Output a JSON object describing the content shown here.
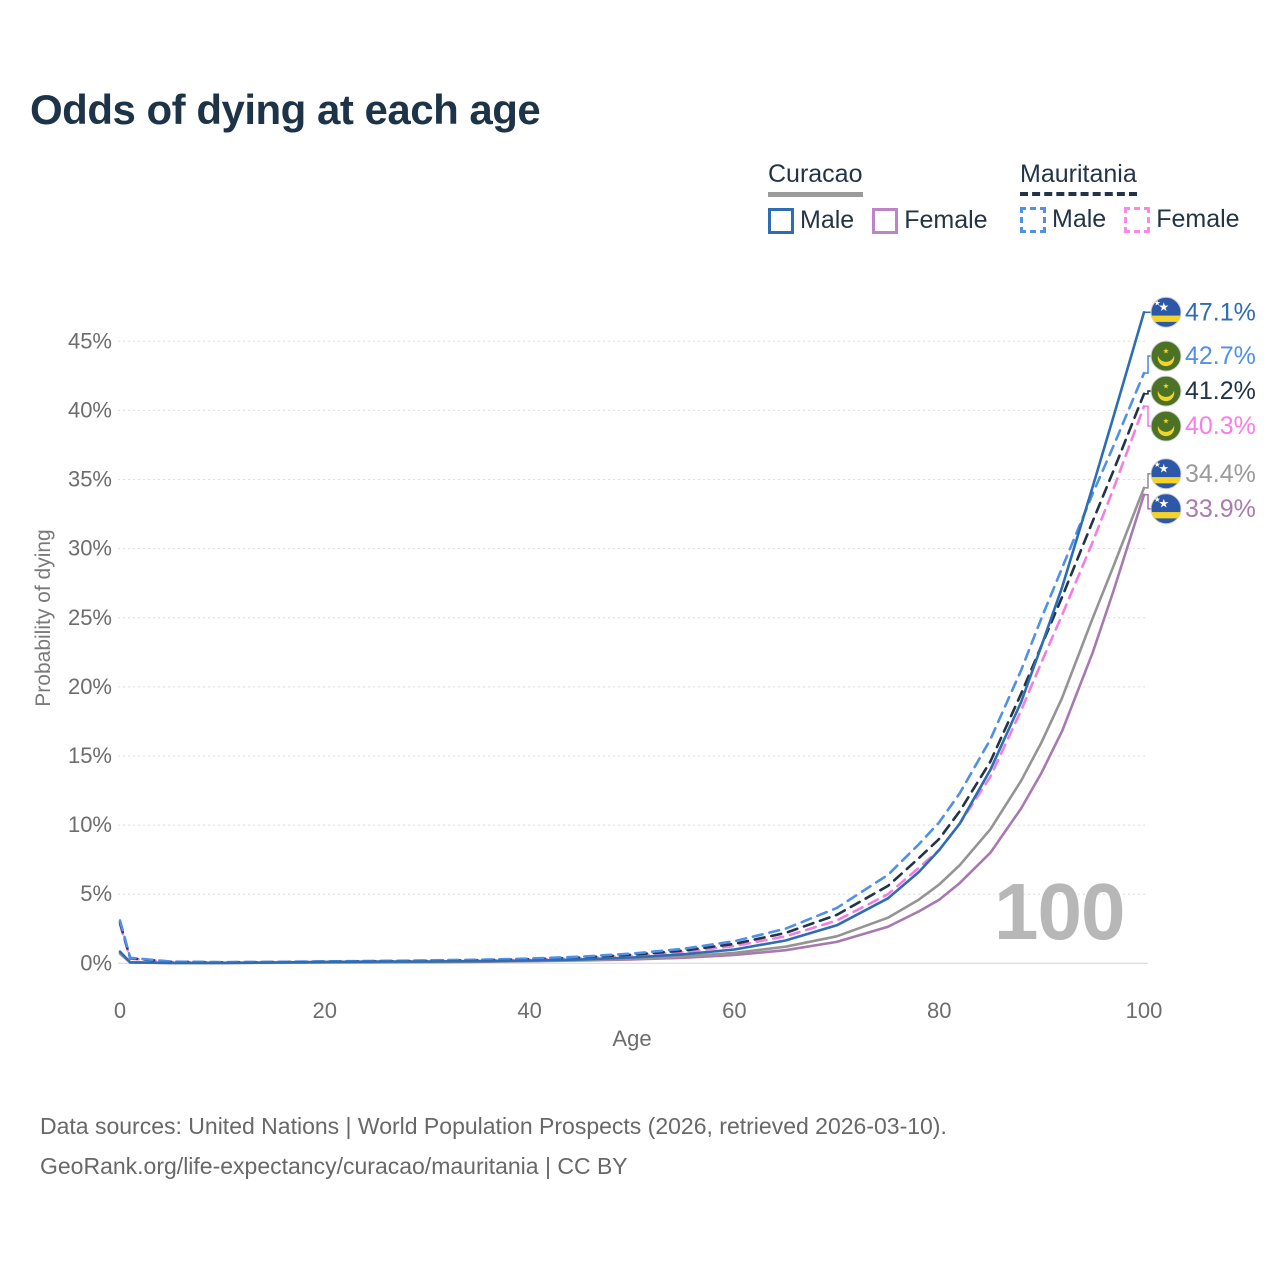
{
  "page": {
    "title": "Odds of dying at each age",
    "watermark_age": "100",
    "footer_line1": "Data sources: United Nations | World Population Prospects (2026, retrieved 2026-03-10).",
    "footer_line2": "GeoRank.org/life-expectancy/curacao/mauritania | CC BY"
  },
  "legend": {
    "groups": [
      {
        "id": "curacao",
        "label": "Curacao",
        "line_style": "solid",
        "line_color": "#9b9b9b",
        "items": [
          {
            "id": "male",
            "label": "Male",
            "color": "#2e6db4",
            "dashed": false
          },
          {
            "id": "female",
            "label": "Female",
            "color": "#bd84c6",
            "dashed": false
          }
        ]
      },
      {
        "id": "mauritania",
        "label": "Mauritania",
        "line_style": "dashed",
        "line_color": "#223448",
        "items": [
          {
            "id": "male",
            "label": "Male",
            "color": "#4f90e8",
            "dashed": true
          },
          {
            "id": "female",
            "label": "Female",
            "color": "#fb87e8",
            "dashed": true
          }
        ]
      }
    ]
  },
  "chart_data": {
    "type": "line",
    "title": "Odds of dying at each age",
    "xlabel": "Age",
    "ylabel": "Probability of dying",
    "xlim": [
      0,
      100
    ],
    "ylim": [
      0,
      47.5
    ],
    "x_ticks": [
      0,
      20,
      40,
      60,
      80,
      100
    ],
    "y_ticks": [
      0,
      5,
      10,
      15,
      20,
      25,
      30,
      35,
      40,
      45
    ],
    "y_tick_suffix": "%",
    "grid": true,
    "legend_position": "top-right",
    "hover_age": 100,
    "series": [
      {
        "id": "curacao-female",
        "name": "Curacao Female",
        "country": "Curacao",
        "sex": "Female",
        "color": "#a879b1",
        "label_color": "#a87cae",
        "dashed": false,
        "flag": "curacao",
        "end_label": "33.9%",
        "end_value": 33.9,
        "points": [
          [
            0,
            0.7
          ],
          [
            1,
            0.05
          ],
          [
            5,
            0.02
          ],
          [
            10,
            0.02
          ],
          [
            15,
            0.035
          ],
          [
            20,
            0.05
          ],
          [
            25,
            0.065
          ],
          [
            30,
            0.08
          ],
          [
            35,
            0.11
          ],
          [
            40,
            0.15
          ],
          [
            45,
            0.2
          ],
          [
            50,
            0.28
          ],
          [
            55,
            0.4
          ],
          [
            60,
            0.6
          ],
          [
            65,
            0.95
          ],
          [
            70,
            1.55
          ],
          [
            75,
            2.65
          ],
          [
            78,
            3.75
          ],
          [
            80,
            4.6
          ],
          [
            82,
            5.8
          ],
          [
            85,
            8.0
          ],
          [
            88,
            11.2
          ],
          [
            90,
            13.8
          ],
          [
            92,
            16.8
          ],
          [
            95,
            22.5
          ],
          [
            97,
            26.9
          ],
          [
            100,
            33.9
          ]
        ]
      },
      {
        "id": "curacao-both",
        "name": "Curacao Both sexes",
        "country": "Curacao",
        "sex": "Both",
        "color": "#949494",
        "label_color": "#9b9b9b",
        "dashed": false,
        "flag": "curacao",
        "end_label": "34.4%",
        "end_value": 34.4,
        "points": [
          [
            0,
            0.78
          ],
          [
            1,
            0.06
          ],
          [
            5,
            0.025
          ],
          [
            10,
            0.025
          ],
          [
            15,
            0.05
          ],
          [
            20,
            0.08
          ],
          [
            25,
            0.1
          ],
          [
            30,
            0.11
          ],
          [
            35,
            0.13
          ],
          [
            40,
            0.17
          ],
          [
            45,
            0.23
          ],
          [
            50,
            0.34
          ],
          [
            55,
            0.5
          ],
          [
            60,
            0.75
          ],
          [
            65,
            1.2
          ],
          [
            70,
            1.95
          ],
          [
            75,
            3.3
          ],
          [
            78,
            4.6
          ],
          [
            80,
            5.7
          ],
          [
            82,
            7.1
          ],
          [
            85,
            9.7
          ],
          [
            88,
            13.2
          ],
          [
            90,
            16.0
          ],
          [
            92,
            19.2
          ],
          [
            95,
            25.0
          ],
          [
            97,
            28.7
          ],
          [
            100,
            34.4
          ]
        ]
      },
      {
        "id": "mauritania-female",
        "name": "Mauritania Female",
        "country": "Mauritania",
        "sex": "Female",
        "color": "#f27ee3",
        "label_color": "#fb7ce8",
        "dashed": true,
        "flag": "mauritania",
        "end_label": "40.3%",
        "end_value": 40.3,
        "points": [
          [
            0,
            2.8
          ],
          [
            1,
            0.34
          ],
          [
            5,
            0.1
          ],
          [
            10,
            0.065
          ],
          [
            15,
            0.08
          ],
          [
            20,
            0.1
          ],
          [
            25,
            0.13
          ],
          [
            30,
            0.16
          ],
          [
            35,
            0.2
          ],
          [
            40,
            0.27
          ],
          [
            45,
            0.38
          ],
          [
            50,
            0.55
          ],
          [
            55,
            0.82
          ],
          [
            60,
            1.25
          ],
          [
            65,
            1.95
          ],
          [
            70,
            3.1
          ],
          [
            75,
            5.0
          ],
          [
            78,
            6.9
          ],
          [
            80,
            8.2
          ],
          [
            82,
            10.1
          ],
          [
            85,
            13.5
          ],
          [
            88,
            18.3
          ],
          [
            90,
            21.8
          ],
          [
            92,
            25.2
          ],
          [
            95,
            30.5
          ],
          [
            97,
            34.3
          ],
          [
            100,
            40.3
          ]
        ]
      },
      {
        "id": "mauritania-both",
        "name": "Mauritania Both sexes",
        "country": "Mauritania",
        "sex": "Both",
        "color": "#223448",
        "label_color": "#223448",
        "dashed": true,
        "flag": "mauritania",
        "end_label": "41.2%",
        "end_value": 41.2,
        "points": [
          [
            0,
            2.95
          ],
          [
            1,
            0.37
          ],
          [
            5,
            0.11
          ],
          [
            10,
            0.07
          ],
          [
            15,
            0.09
          ],
          [
            20,
            0.12
          ],
          [
            25,
            0.15
          ],
          [
            30,
            0.18
          ],
          [
            35,
            0.23
          ],
          [
            40,
            0.3
          ],
          [
            45,
            0.42
          ],
          [
            50,
            0.62
          ],
          [
            55,
            0.92
          ],
          [
            60,
            1.4
          ],
          [
            65,
            2.2
          ],
          [
            70,
            3.5
          ],
          [
            75,
            5.6
          ],
          [
            78,
            7.6
          ],
          [
            80,
            9.0
          ],
          [
            82,
            11.0
          ],
          [
            85,
            14.6
          ],
          [
            88,
            19.5
          ],
          [
            90,
            23.0
          ],
          [
            92,
            26.5
          ],
          [
            95,
            32.0
          ],
          [
            97,
            35.6
          ],
          [
            100,
            41.2
          ]
        ]
      },
      {
        "id": "mauritania-male",
        "name": "Mauritania Male",
        "country": "Mauritania",
        "sex": "Male",
        "color": "#4f90e8",
        "label_color": "#4f90e8",
        "dashed": true,
        "flag": "mauritania",
        "end_label": "42.7%",
        "end_value": 42.7,
        "points": [
          [
            0,
            3.1
          ],
          [
            1,
            0.4
          ],
          [
            5,
            0.12
          ],
          [
            10,
            0.08
          ],
          [
            15,
            0.1
          ],
          [
            20,
            0.14
          ],
          [
            25,
            0.17
          ],
          [
            30,
            0.21
          ],
          [
            35,
            0.26
          ],
          [
            40,
            0.34
          ],
          [
            45,
            0.48
          ],
          [
            50,
            0.7
          ],
          [
            55,
            1.05
          ],
          [
            60,
            1.6
          ],
          [
            65,
            2.5
          ],
          [
            70,
            4.0
          ],
          [
            75,
            6.4
          ],
          [
            78,
            8.6
          ],
          [
            80,
            10.2
          ],
          [
            82,
            12.3
          ],
          [
            85,
            16.2
          ],
          [
            88,
            21.2
          ],
          [
            90,
            25.0
          ],
          [
            92,
            28.6
          ],
          [
            95,
            34.0
          ],
          [
            97,
            37.4
          ],
          [
            100,
            42.7
          ]
        ]
      },
      {
        "id": "curacao-male",
        "name": "Curacao Male",
        "country": "Curacao",
        "sex": "Male",
        "color": "#2e6db4",
        "label_color": "#2e6db4",
        "dashed": false,
        "flag": "curacao",
        "end_label": "47.1%",
        "end_value": 47.1,
        "points": [
          [
            0,
            0.85
          ],
          [
            1,
            0.07
          ],
          [
            5,
            0.03
          ],
          [
            10,
            0.03
          ],
          [
            15,
            0.06
          ],
          [
            20,
            0.1
          ],
          [
            25,
            0.12
          ],
          [
            30,
            0.13
          ],
          [
            35,
            0.16
          ],
          [
            40,
            0.2
          ],
          [
            45,
            0.28
          ],
          [
            50,
            0.42
          ],
          [
            55,
            0.65
          ],
          [
            60,
            1.0
          ],
          [
            65,
            1.65
          ],
          [
            70,
            2.75
          ],
          [
            75,
            4.7
          ],
          [
            78,
            6.6
          ],
          [
            80,
            8.2
          ],
          [
            82,
            10.1
          ],
          [
            85,
            14.0
          ],
          [
            88,
            18.9
          ],
          [
            90,
            23.0
          ],
          [
            92,
            27.2
          ],
          [
            95,
            34.5
          ],
          [
            97,
            39.5
          ],
          [
            100,
            47.1
          ]
        ]
      }
    ],
    "flag_colors": {
      "curacao": {
        "field": "#2d58a8",
        "stripe": "#f5d429",
        "star": "#ffffff"
      },
      "mauritania": {
        "field": "#4c7226",
        "crescent": "#f5d429",
        "star": "#f5d429"
      }
    }
  }
}
